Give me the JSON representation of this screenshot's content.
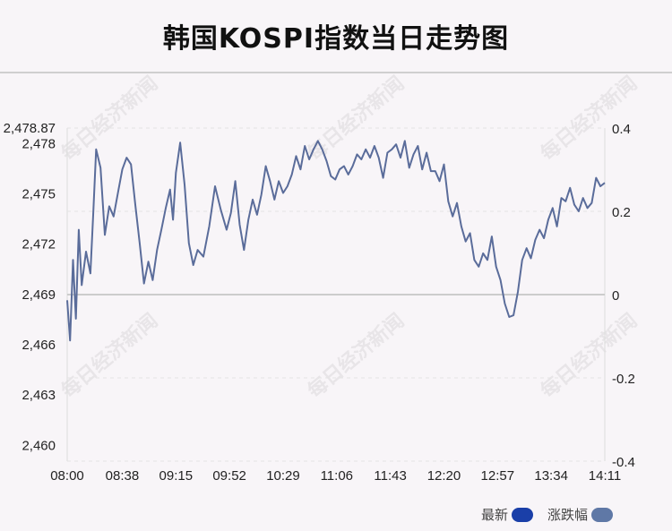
{
  "title": "韩国KOSPI指数当日走势图",
  "watermark": "每日经济新闻",
  "legend": [
    {
      "label": "最新",
      "color": "#1a3fa8"
    },
    {
      "label": "涨跌幅",
      "color": "#5f78a6"
    }
  ],
  "colors": {
    "line": "#5a6c9a",
    "zero_line": "#cccccc",
    "grid": "#e3e3e3"
  },
  "chart_data": {
    "type": "line",
    "title": "韩国KOSPI指数当日走势图",
    "top_label": "2,478.87",
    "y_left": {
      "min": 2459,
      "max": 2478.87,
      "ticks": [
        2460,
        2463,
        2466,
        2469,
        2472,
        2475,
        2478
      ],
      "tick_labels": [
        "2,460",
        "2,463",
        "2,466",
        "2,469",
        "2,472",
        "2,475",
        "2,478"
      ]
    },
    "y_right": {
      "min": -0.4,
      "max": 0.4,
      "ticks": [
        -0.4,
        -0.2,
        0,
        0.2,
        0.4
      ],
      "tick_labels": [
        "-0.4",
        "-0.2",
        "0",
        "0.2",
        "0.4"
      ]
    },
    "x_ticks": [
      "08:00",
      "08:38",
      "09:15",
      "09:52",
      "10:29",
      "11:06",
      "11:43",
      "12:20",
      "12:57",
      "13:34",
      "14:11"
    ],
    "x_range": [
      "08:00",
      "14:11"
    ],
    "reference": 2469,
    "series": [
      {
        "time": [
          "08:00",
          "08:02",
          "08:04",
          "08:06",
          "08:08",
          "08:10",
          "08:13",
          "08:16",
          "08:18",
          "08:20",
          "08:23",
          "08:26",
          "08:29",
          "08:32",
          "08:35",
          "08:38",
          "08:41",
          "08:44",
          "08:47",
          "08:50",
          "08:53",
          "08:56",
          "08:59",
          "09:02",
          "09:05",
          "09:08",
          "09:11",
          "09:13",
          "09:15",
          "09:18",
          "09:21",
          "09:24",
          "09:27",
          "09:30",
          "09:34",
          "09:38",
          "09:42",
          "09:46",
          "09:50",
          "09:53",
          "09:56",
          "09:59",
          "10:02",
          "10:05",
          "10:08",
          "10:11",
          "10:14",
          "10:17",
          "10:20",
          "10:23",
          "10:26",
          "10:29",
          "10:32",
          "10:35",
          "10:38",
          "10:41",
          "10:44",
          "10:47",
          "10:50",
          "10:53",
          "10:56",
          "10:59",
          "11:02",
          "11:05",
          "11:08",
          "11:11",
          "11:14",
          "11:17",
          "11:20",
          "11:23",
          "11:26",
          "11:29",
          "11:32",
          "11:35",
          "11:38",
          "11:41",
          "11:44",
          "11:47",
          "11:50",
          "11:53",
          "11:56",
          "11:59",
          "12:02",
          "12:05",
          "12:08",
          "12:11",
          "12:14",
          "12:17",
          "12:20",
          "12:23",
          "12:26",
          "12:29",
          "12:32",
          "12:35",
          "12:38",
          "12:41",
          "12:44",
          "12:47",
          "12:50",
          "12:53",
          "12:56",
          "12:59",
          "13:02",
          "13:05",
          "13:08",
          "13:11",
          "13:14",
          "13:17",
          "13:20",
          "13:23",
          "13:26",
          "13:29",
          "13:32",
          "13:35",
          "13:38",
          "13:41",
          "13:44",
          "13:47",
          "13:50",
          "13:53",
          "13:56",
          "13:59",
          "14:02",
          "14:05",
          "14:08",
          "14:11"
        ],
        "value": [
          2468.6,
          2466.2,
          2471.0,
          2467.5,
          2472.8,
          2469.5,
          2471.5,
          2470.2,
          2473.8,
          2477.6,
          2476.5,
          2472.5,
          2474.2,
          2473.6,
          2475.0,
          2476.4,
          2477.1,
          2476.7,
          2474.3,
          2472.0,
          2469.6,
          2470.9,
          2469.8,
          2471.6,
          2472.8,
          2474.1,
          2475.2,
          2473.4,
          2476.2,
          2478.0,
          2475.5,
          2472.0,
          2470.7,
          2471.6,
          2471.2,
          2473.0,
          2475.4,
          2474.0,
          2472.8,
          2473.8,
          2475.7,
          2473.1,
          2471.6,
          2473.4,
          2474.6,
          2473.7,
          2474.9,
          2476.6,
          2475.7,
          2474.6,
          2475.7,
          2475.0,
          2475.4,
          2476.1,
          2477.2,
          2476.4,
          2477.8,
          2477.0,
          2477.6,
          2478.1,
          2477.6,
          2476.9,
          2476.0,
          2475.8,
          2476.4,
          2476.6,
          2476.1,
          2476.6,
          2477.3,
          2477.0,
          2477.6,
          2477.1,
          2477.8,
          2477.1,
          2475.9,
          2477.4,
          2477.6,
          2477.9,
          2477.1,
          2478.1,
          2476.5,
          2477.3,
          2477.8,
          2476.4,
          2477.4,
          2476.3,
          2476.3,
          2475.7,
          2476.7,
          2474.5,
          2473.6,
          2474.4,
          2473.0,
          2472.1,
          2472.6,
          2471.0,
          2470.6,
          2471.4,
          2471.0,
          2472.4,
          2470.6,
          2469.8,
          2468.4,
          2467.6,
          2467.7,
          2469.1,
          2471.0,
          2471.7,
          2471.1,
          2472.2,
          2472.8,
          2472.3,
          2473.4,
          2474.1,
          2473.0,
          2474.7,
          2474.5,
          2475.3,
          2474.3,
          2473.9,
          2474.7,
          2474.1,
          2474.4,
          2475.9,
          2475.4,
          2475.6
        ]
      }
    ]
  }
}
